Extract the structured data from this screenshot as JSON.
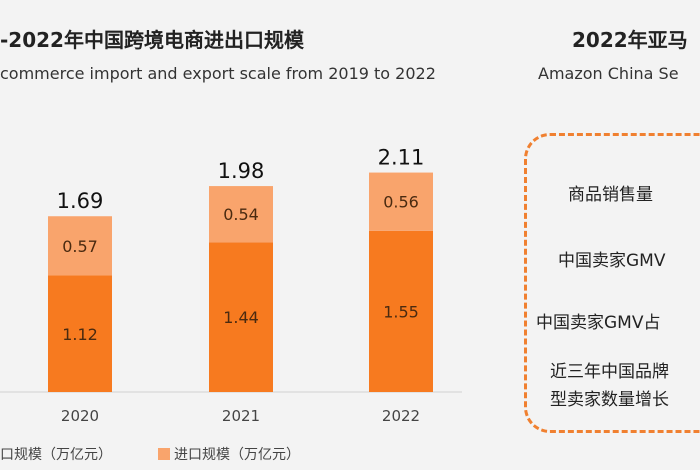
{
  "left_panel": {
    "title": "-2022年中国跨境电商进出口规模",
    "subtitle": "commerce import and export scale from 2019 to 2022"
  },
  "right_panel": {
    "title": "2022年亚马",
    "subtitle": "Amazon China Se",
    "items": [
      "商品销售量",
      "中国卖家GMV",
      "中国卖家GMV占",
      "近三年中国品牌",
      "型卖家数量增长"
    ]
  },
  "chart_data": {
    "type": "bar",
    "stacked": true,
    "categories": [
      "2020",
      "2021",
      "2022"
    ],
    "series": [
      {
        "name": "口规模（万亿元）",
        "values": [
          1.12,
          1.44,
          1.55
        ],
        "color": "#f77a1f"
      },
      {
        "name": "进口规模（万亿元）",
        "values": [
          0.57,
          0.54,
          0.56
        ],
        "color": "#f9a46c"
      }
    ],
    "totals": [
      1.69,
      1.98,
      2.11
    ],
    "grid": false,
    "legend": "bottom"
  }
}
